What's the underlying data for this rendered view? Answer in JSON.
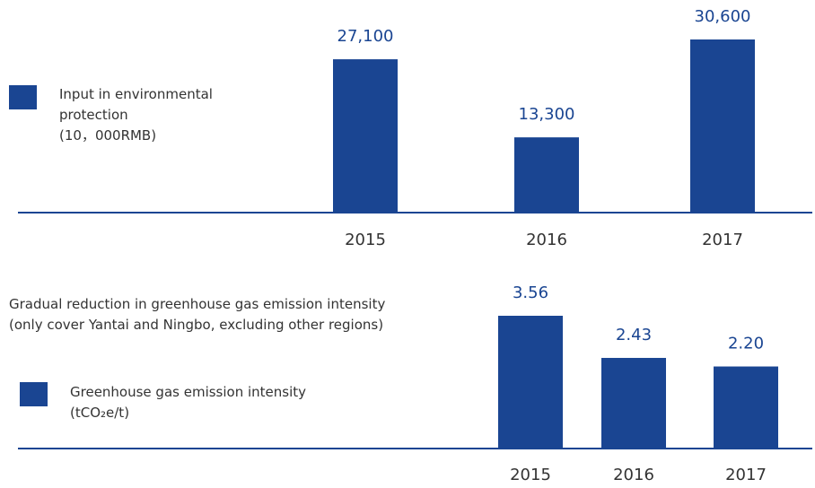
{
  "chart_data": [
    {
      "type": "bar",
      "categories": [
        "2015",
        "2016",
        "2017"
      ],
      "series": [
        {
          "name": "Input in environmental protection",
          "unit": "(10，000RMB)",
          "color": "#1a4592",
          "values": [
            27100,
            13300,
            30600
          ],
          "value_labels": [
            "27,100",
            "13,300",
            "30,600"
          ]
        }
      ]
    },
    {
      "type": "bar",
      "title": "Gradual reduction in greenhouse gas emission intensity",
      "subtitle": "(only cover Yantai and Ningbo, excluding other regions)",
      "categories": [
        "2015",
        "2016",
        "2017"
      ],
      "series": [
        {
          "name": "Greenhouse gas emission intensity",
          "unit": "(tCO₂e/t)",
          "color": "#1a4592",
          "values": [
            3.56,
            2.43,
            2.2
          ],
          "value_labels": [
            "3.56",
            "2.43",
            "2.20"
          ]
        }
      ]
    }
  ]
}
